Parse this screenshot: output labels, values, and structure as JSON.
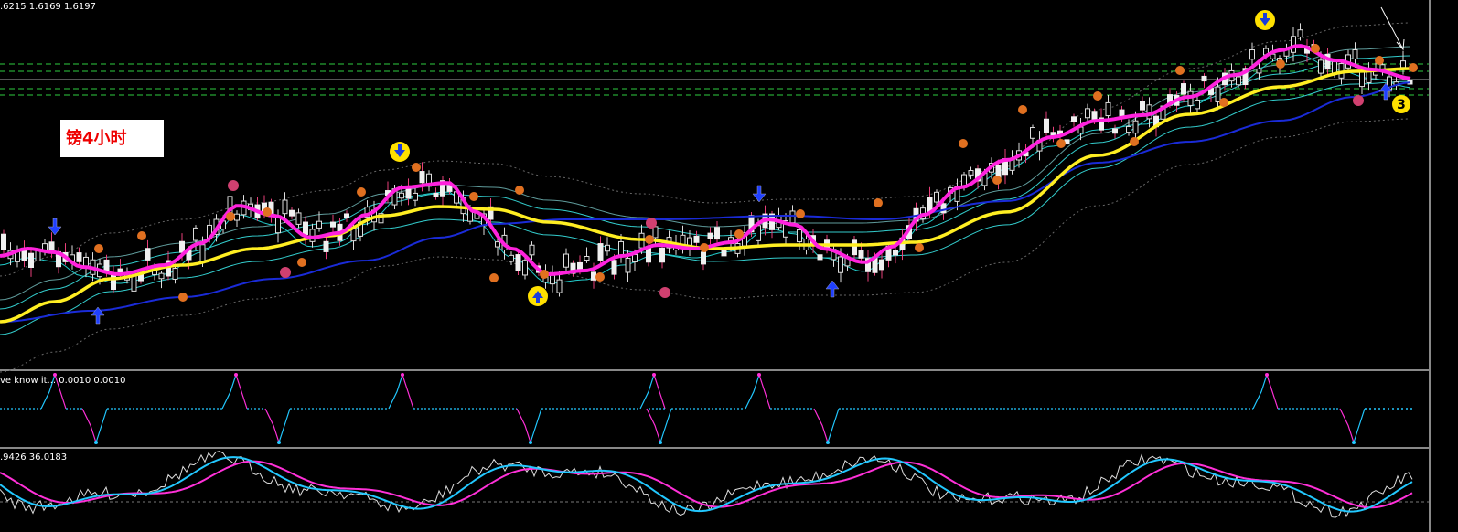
{
  "header": {
    "quote": ".6215 1.6169 1.6197"
  },
  "chart_label": "镑4小时",
  "indicator1": {
    "label": "ve know it... 0.0010 0.0010"
  },
  "indicator2": {
    "label": ".9426 36.0183"
  },
  "badge": "3"
}
